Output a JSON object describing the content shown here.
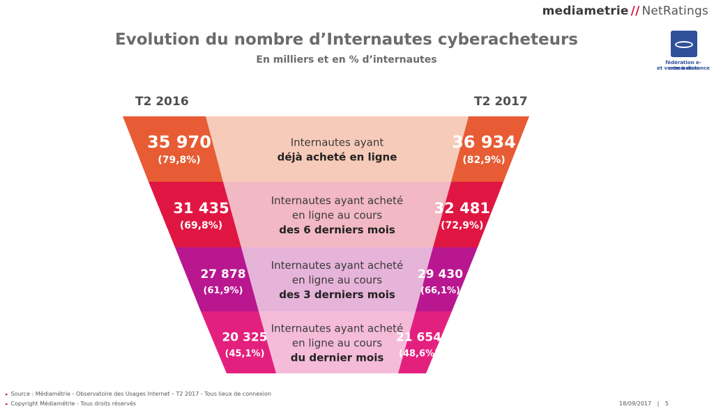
{
  "brand": {
    "part1": "mediametrie",
    "separator": "//",
    "part2": "NetRatings"
  },
  "title": "Evolution du nombre d’Internautes cyberacheteurs",
  "subtitle": "En milliers et en % d’internautes",
  "partner_logo": {
    "text": [
      "fédération e-commerce",
      "et vente à distance"
    ]
  },
  "periods": {
    "left": "T2 2016",
    "right": "T2 2017"
  },
  "funnel": [
    {
      "left_value": "35 970",
      "left_pct": "(79,8%)",
      "right_value": "36 934",
      "right_pct": "(82,9%)",
      "label_lines": [
        "Internautes ayant"
      ],
      "label_bold": "déjà acheté en ligne",
      "side_color": "#e75c34",
      "center_color": "#f7cbba"
    },
    {
      "left_value": "31 435",
      "left_pct": "(69,8%)",
      "right_value": "32 481",
      "right_pct": "(72,9%)",
      "label_lines": [
        "Internautes ayant acheté",
        "en ligne au cours"
      ],
      "label_bold": "des 6 derniers mois",
      "side_color": "#e01642",
      "center_color": "#f2b8c4"
    },
    {
      "left_value": "27 878",
      "left_pct": "(61,9%)",
      "right_value": "29 430",
      "right_pct": "(66,1%)",
      "label_lines": [
        "Internautes ayant acheté",
        "en ligne au cours"
      ],
      "label_bold": "des 3 derniers mois",
      "side_color": "#b9178f",
      "center_color": "#e6b3d9"
    },
    {
      "left_value": "20 325",
      "left_pct": "(45,1%)",
      "right_value": "21 654",
      "right_pct": "(48,6%)",
      "label_lines": [
        "Internautes ayant acheté",
        "en ligne au cours"
      ],
      "label_bold": "du dernier mois",
      "side_color": "#e4207e",
      "center_color": "#f5bcd9"
    }
  ],
  "footer": {
    "source": "Source : Médiamétrie - Observatoire des Usages Internet – T2 2017 - Tous lieux de connexion",
    "copyright": "Copyright Médiamétrie - Tous droits réservés",
    "date": "18/09/2017",
    "page_separator": "|",
    "page": "5"
  }
}
